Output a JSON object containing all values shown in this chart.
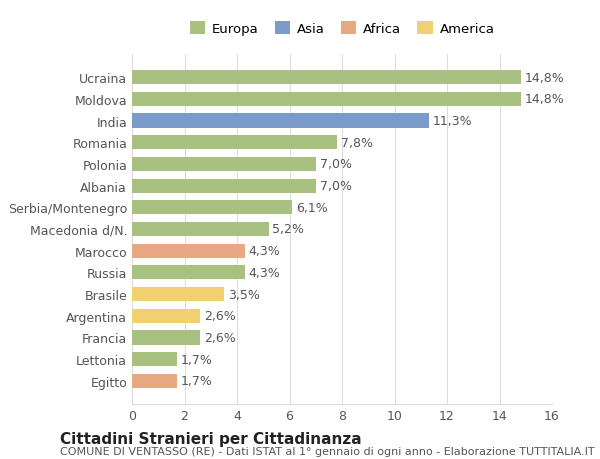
{
  "categories": [
    "Ucraina",
    "Moldova",
    "India",
    "Romania",
    "Polonia",
    "Albania",
    "Serbia/Montenegro",
    "Macedonia d/N.",
    "Marocco",
    "Russia",
    "Brasile",
    "Argentina",
    "Francia",
    "Lettonia",
    "Egitto"
  ],
  "values": [
    14.8,
    14.8,
    11.3,
    7.8,
    7.0,
    7.0,
    6.1,
    5.2,
    4.3,
    4.3,
    3.5,
    2.6,
    2.6,
    1.7,
    1.7
  ],
  "continents": [
    "Europa",
    "Europa",
    "Asia",
    "Europa",
    "Europa",
    "Europa",
    "Europa",
    "Europa",
    "Africa",
    "Europa",
    "America",
    "America",
    "Europa",
    "Europa",
    "Africa"
  ],
  "labels": [
    "14,8%",
    "14,8%",
    "11,3%",
    "7,8%",
    "7,0%",
    "7,0%",
    "6,1%",
    "5,2%",
    "4,3%",
    "4,3%",
    "3,5%",
    "2,6%",
    "2,6%",
    "1,7%",
    "1,7%"
  ],
  "colors": {
    "Europa": "#a8c080",
    "Asia": "#7b9bc8",
    "Africa": "#e8a882",
    "America": "#f0d070"
  },
  "legend_items": [
    "Europa",
    "Asia",
    "Africa",
    "America"
  ],
  "xlim": [
    0,
    16
  ],
  "xticks": [
    0,
    2,
    4,
    6,
    8,
    10,
    12,
    14,
    16
  ],
  "title": "Cittadini Stranieri per Cittadinanza",
  "subtitle": "COMUNE DI VENTASSO (RE) - Dati ISTAT al 1° gennaio di ogni anno - Elaborazione TUTTITALIA.IT",
  "background_color": "#ffffff",
  "grid_color": "#dddddd",
  "bar_height": 0.65,
  "label_fontsize": 9,
  "tick_fontsize": 9,
  "title_fontsize": 11,
  "subtitle_fontsize": 8
}
